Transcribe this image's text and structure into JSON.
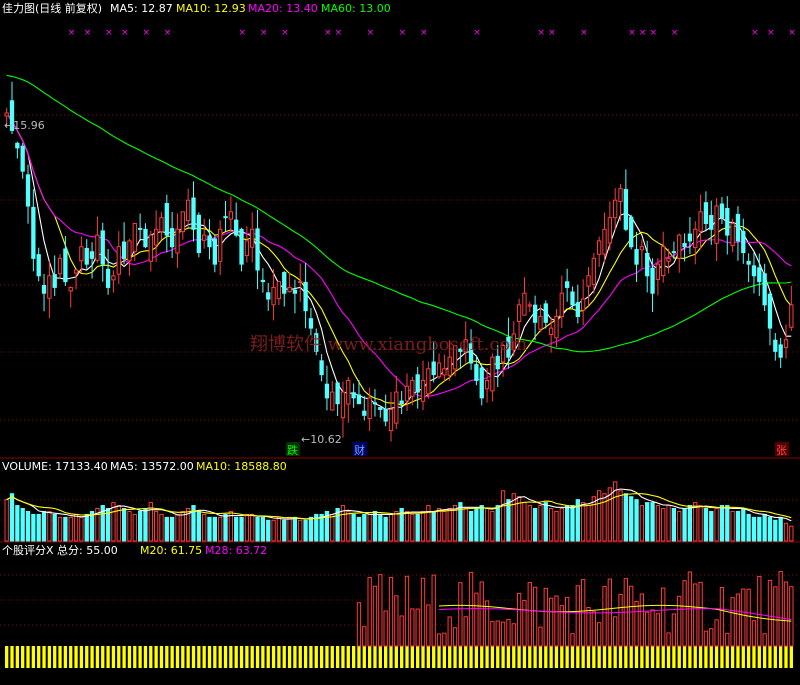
{
  "header": {
    "title": "佳力图(日线 前复权)",
    "ma5": "MA5: 12.87",
    "ma10": "MA10: 12.93",
    "ma20": "MA20: 13.40",
    "ma60": "MA60: 13.00"
  },
  "annotations": {
    "high": "←15.96",
    "low": "←10.62",
    "die": "跌",
    "cai": "财",
    "zhang": "张",
    "watermark": "翔博软件 www.xiangbosoft.com"
  },
  "volume_panel": {
    "vol": "VOLUME: 17133.40",
    "ma5": "MA5: 13572.00",
    "ma10": "MA10: 18588.80"
  },
  "score_panel": {
    "label": "个股评分X 总分: 55.00",
    "m20": "M20: 61.75",
    "m28": "M28: 63.72"
  },
  "colors": {
    "up": "#ff3b3b",
    "down": "#54ffff",
    "ma5": "#ffffff",
    "ma10": "#ffff00",
    "ma20": "#ff00ff",
    "ma60": "#00ff00",
    "grid": "#8a0000",
    "yellow_bar": "#ffff00"
  },
  "chart_data": [
    {
      "type": "candlestick",
      "title": "佳力图(日线 前复权)",
      "price_range": [
        10.0,
        17.5
      ],
      "high_marker": 15.96,
      "low_marker": 10.62,
      "ma_current": {
        "MA5": 12.87,
        "MA10": 12.93,
        "MA20": 13.4,
        "MA60": 13.0
      },
      "close": [
        15.9,
        15.6,
        15.3,
        14.9,
        14.3,
        13.4,
        13.1,
        12.8,
        13.1,
        12.9,
        13.4,
        13.0,
        12.9,
        13.2,
        13.6,
        13.3,
        13.4,
        13.8,
        13.3,
        12.9,
        13.1,
        13.6,
        13.4,
        13.7,
        14.0,
        13.9,
        13.6,
        13.8,
        13.9,
        14.1,
        13.8,
        13.6,
        13.9,
        14.2,
        14.4,
        13.9,
        13.5,
        13.8,
        13.6,
        13.3,
        13.9,
        14.1,
        14.2,
        13.8,
        13.3,
        13.7,
        13.9,
        13.2,
        13.0,
        12.7,
        12.9,
        13.0,
        12.8,
        12.9,
        12.8,
        13.0,
        12.5,
        12.2,
        11.8,
        11.4,
        11.0,
        11.1,
        10.9,
        11.1,
        11.3,
        11.0,
        10.9,
        10.7,
        11.0,
        10.9,
        10.8,
        10.6,
        10.8,
        11.1,
        10.9,
        11.2,
        11.3,
        11.1,
        11.3,
        11.5,
        11.4,
        11.6,
        11.5,
        11.7,
        11.9,
        11.8,
        12.0,
        11.6,
        11.3,
        11.0,
        11.3,
        11.7,
        11.5,
        11.9,
        11.7,
        12.1,
        12.6,
        12.8,
        12.6,
        12.3,
        12.4,
        12.3,
        12.2,
        12.4,
        12.8,
        12.9,
        12.6,
        12.4,
        12.7,
        13.1,
        13.4,
        13.7,
        13.9,
        14.1,
        14.4,
        14.6,
        13.9,
        13.6,
        13.3,
        13.6,
        13.1,
        12.8,
        13.3,
        13.6,
        13.4,
        13.5,
        13.8,
        13.6,
        13.7,
        13.9,
        14.2,
        14.0,
        13.9,
        14.3,
        14.1,
        13.8,
        14.0,
        13.7,
        13.5,
        13.3,
        13.1,
        13.0,
        12.6,
        12.2,
        11.8,
        11.7,
        12.0,
        12.6
      ]
    },
    {
      "type": "bar",
      "title": "VOLUME",
      "values": [
        14,
        16,
        12,
        11,
        10,
        9,
        9,
        10,
        10,
        9,
        8,
        8,
        8,
        9,
        8,
        9,
        10,
        11,
        12,
        11,
        13,
        12,
        11,
        10,
        9,
        10,
        11,
        13,
        10,
        9,
        8,
        8,
        9,
        10,
        11,
        12,
        10,
        9,
        8,
        8,
        8,
        9,
        10,
        8,
        8,
        9,
        9,
        8,
        8,
        7,
        7,
        8,
        7,
        8,
        8,
        7,
        7,
        8,
        9,
        9,
        10,
        9,
        11,
        12,
        10,
        9,
        8,
        9,
        9,
        10,
        9,
        8,
        9,
        10,
        11,
        10,
        9,
        9,
        10,
        12,
        10,
        11,
        10,
        11,
        12,
        13,
        11,
        10,
        11,
        12,
        11,
        10,
        12,
        17,
        14,
        16,
        15,
        13,
        12,
        11,
        12,
        13,
        11,
        10,
        11,
        12,
        12,
        14,
        13,
        12,
        15,
        17,
        16,
        18,
        20,
        17,
        16,
        15,
        14,
        12,
        13,
        13,
        12,
        11,
        12,
        11,
        10,
        11,
        12,
        13,
        12,
        11,
        10,
        11,
        12,
        12,
        10,
        10,
        11,
        9,
        8,
        8,
        9,
        8,
        7,
        8,
        6,
        5
      ],
      "ma_current": {
        "VOLUME": 17133.4,
        "MA5": 13572.0,
        "MA10": 18588.8
      }
    },
    {
      "type": "bar",
      "title": "个股评分X",
      "total": 55.0,
      "M20": 61.75,
      "M28": 63.72
    }
  ]
}
